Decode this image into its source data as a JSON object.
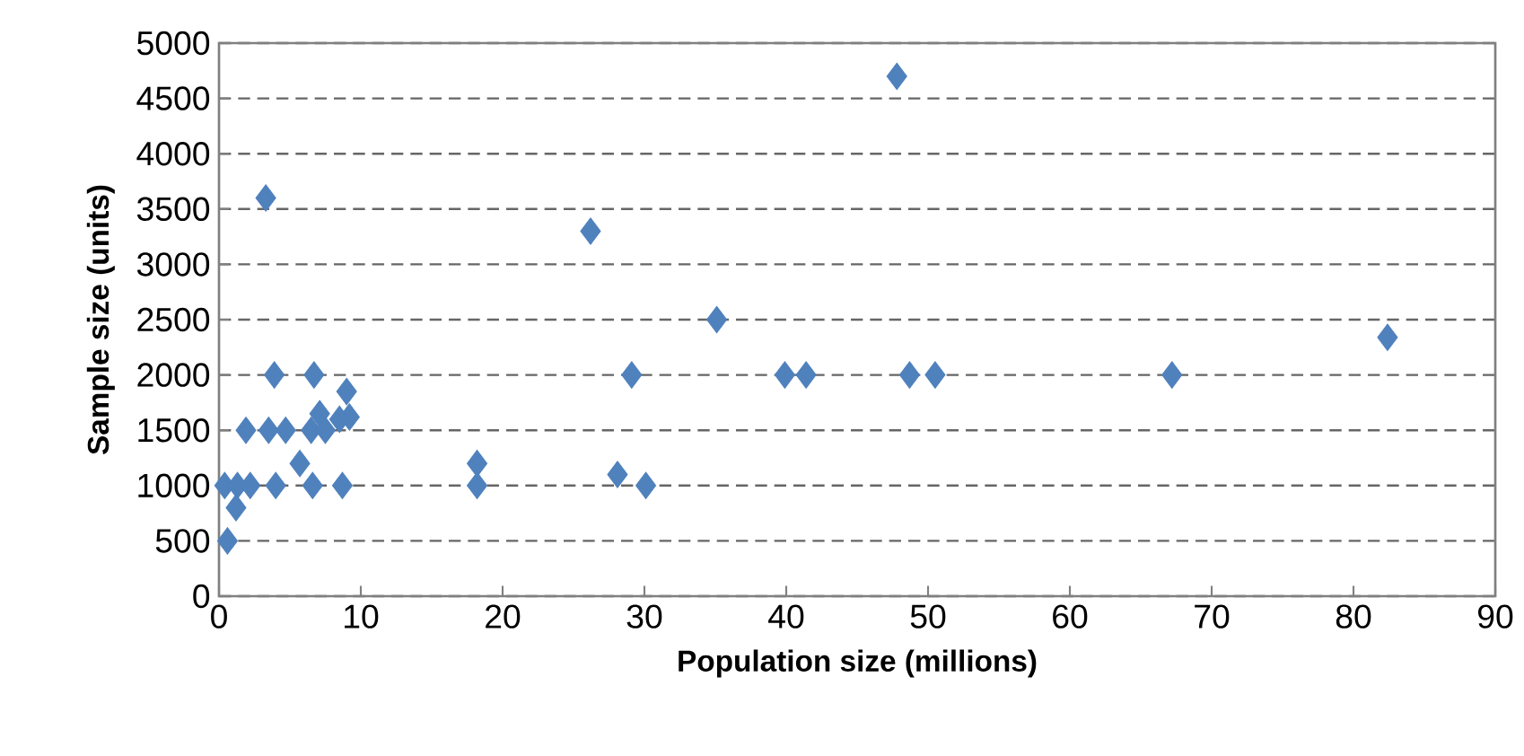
{
  "chart_data": {
    "type": "scatter",
    "xlabel": "Population size (millions)",
    "ylabel": "Sample size (units)",
    "x": [
      3.3,
      47.8,
      26.2,
      35.1,
      82.4,
      3.9,
      6.7,
      29.1,
      39.9,
      41.4,
      48.7,
      50.5,
      67.2,
      9.0,
      7.1,
      9.2,
      8.5,
      1.9,
      3.5,
      4.7,
      6.5,
      7.5,
      5.7,
      18.2,
      28.1,
      0.4,
      1.3,
      2.2,
      4.0,
      6.6,
      8.7,
      18.2,
      30.1,
      1.2,
      0.6
    ],
    "values": [
      3600,
      4700,
      3300,
      2500,
      2340,
      2000,
      2000,
      2000,
      2000,
      2000,
      2000,
      2000,
      2000,
      1850,
      1650,
      1620,
      1600,
      1500,
      1500,
      1500,
      1500,
      1500,
      1200,
      1200,
      1100,
      1000,
      1000,
      1000,
      1000,
      1000,
      1000,
      1000,
      1000,
      800,
      500
    ],
    "color": "#4f81bd",
    "marker": "diamond",
    "grid": "y",
    "xlim": [
      0,
      90
    ],
    "ylim": [
      0,
      5000
    ],
    "xticks": [
      0,
      10,
      20,
      30,
      40,
      50,
      60,
      70,
      80,
      90
    ],
    "yticks": [
      0,
      500,
      1000,
      1500,
      2000,
      2500,
      3000,
      3500,
      4000,
      4500,
      5000
    ]
  }
}
